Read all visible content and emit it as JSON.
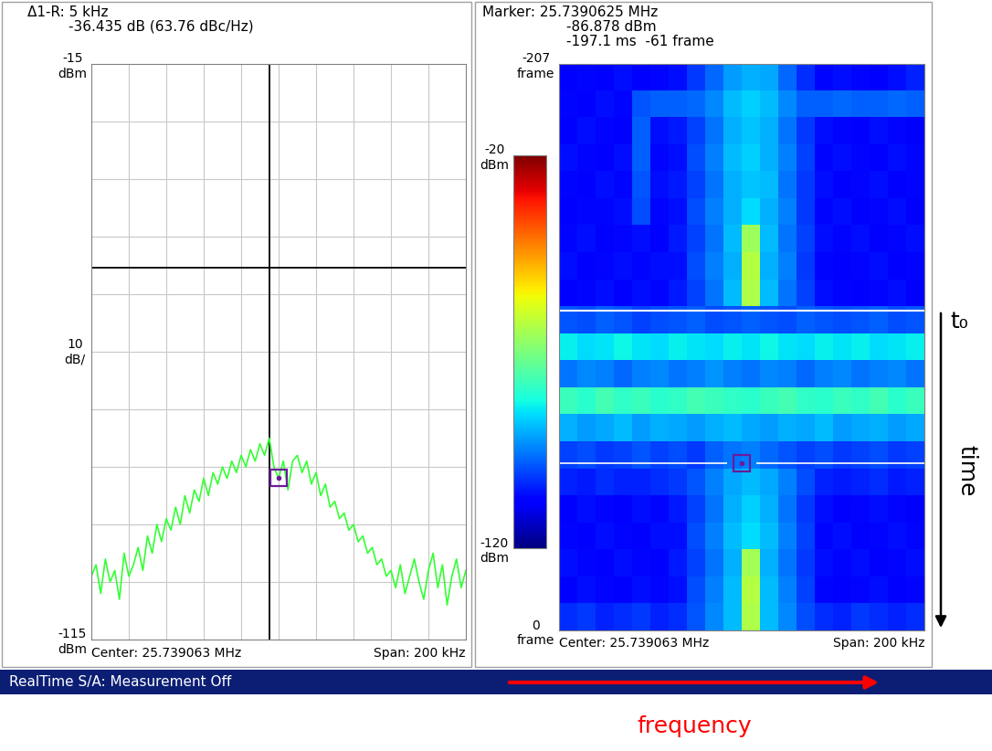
{
  "chart_data": [
    {
      "type": "line",
      "header": [
        "Δ1-R: 5 kHz",
        "-36.435 dB (63.76 dBc/Hz)"
      ],
      "x": [
        25.639063,
        25.641563,
        25.644063,
        25.646563,
        25.649063,
        25.651563,
        25.654063,
        25.656563,
        25.659063,
        25.661563,
        25.664063,
        25.666563,
        25.669063,
        25.671563,
        25.674063,
        25.676563,
        25.679063,
        25.681563,
        25.684063,
        25.686563,
        25.689063,
        25.691563,
        25.694063,
        25.696563,
        25.699063,
        25.701563,
        25.704063,
        25.706563,
        25.709063,
        25.711563,
        25.714063,
        25.716563,
        25.719063,
        25.721563,
        25.724063,
        25.726563,
        25.729063,
        25.731563,
        25.734063,
        25.736563,
        25.739063,
        25.741563,
        25.744063,
        25.746563,
        25.749063,
        25.751563,
        25.754063,
        25.756563,
        25.759063,
        25.761563,
        25.764063,
        25.766563,
        25.769063,
        25.771563,
        25.774063,
        25.776563,
        25.779063,
        25.781563,
        25.784063,
        25.786563,
        25.789063,
        25.791563,
        25.794063,
        25.796563,
        25.799063,
        25.801563,
        25.804063,
        25.806563,
        25.809063,
        25.811563,
        25.814063,
        25.816563,
        25.819063,
        25.821563,
        25.824063,
        25.826563,
        25.829063,
        25.831563,
        25.834063,
        25.836563,
        25.839063
      ],
      "values": [
        -104,
        -102,
        -107,
        -101,
        -105,
        -103,
        -108,
        -100,
        -104,
        -102,
        -99,
        -103,
        -97,
        -100,
        -95,
        -98,
        -94,
        -96,
        -92,
        -95,
        -90,
        -93,
        -89,
        -91,
        -87,
        -90,
        -86,
        -88,
        -85,
        -87,
        -84,
        -86,
        -83,
        -85,
        -82,
        -84,
        -81,
        -83,
        -80,
        -85,
        -87,
        -84,
        -89,
        -84,
        -83,
        -86,
        -84,
        -88,
        -86,
        -90,
        -88,
        -92,
        -91,
        -94,
        -93,
        -96,
        -95,
        -98,
        -97,
        -100,
        -99,
        -102,
        -101,
        -104,
        -103,
        -106,
        -102,
        -107,
        -104,
        -101,
        -105,
        -108,
        -103,
        -100,
        -106,
        -102,
        -109,
        -104,
        -101,
        -106,
        -103
      ],
      "color": "#33ff33",
      "xlim": [
        25.639063,
        25.839063
      ],
      "ylim": [
        -115,
        -15
      ],
      "yticks": [
        {
          "value": -15,
          "label": "-15\ndBm"
        },
        {
          "value": -115,
          "label": "-115\ndBm"
        }
      ],
      "tick_labels": "y",
      "grid": true,
      "scale_label": "10\ndB/",
      "reference": {
        "x": 25.7340625,
        "y": -50.443
      },
      "marker": {
        "x": 25.7390625,
        "y": -86.878
      },
      "center_label": "Center: 25.739063 MHz",
      "span_label": "Span: 200 kHz"
    },
    {
      "type": "heatmap",
      "header": [
        "Marker: 25.7390625 MHz",
        "-86.878 dBm",
        "-197.1 ms  -61 frame"
      ],
      "xlim": [
        25.639063,
        25.839063
      ],
      "ylim": [
        -207,
        0
      ],
      "yticks": [
        {
          "value": -207,
          "label": "-207\nframe"
        },
        {
          "value": 0,
          "label": "0\nframe"
        }
      ],
      "tick_labels": "y",
      "grid": false,
      "cells": [
        [
          -108,
          -107,
          -108,
          -106,
          -108,
          -107,
          -106,
          -102,
          -97,
          -92,
          -90,
          -91,
          -97,
          -103,
          -107,
          -106,
          -107,
          -108,
          -106,
          -104
        ],
        [
          -107,
          -108,
          -106,
          -107,
          -99,
          -98,
          -98,
          -97,
          -94,
          -89,
          -87,
          -89,
          -94,
          -98,
          -98,
          -97,
          -98,
          -98,
          -97,
          -98
        ],
        [
          -108,
          -106,
          -107,
          -108,
          -98,
          -106,
          -105,
          -101,
          -96,
          -90,
          -88,
          -90,
          -96,
          -102,
          -106,
          -107,
          -108,
          -106,
          -107,
          -108
        ],
        [
          -106,
          -107,
          -108,
          -106,
          -98,
          -107,
          -106,
          -100,
          -95,
          -89,
          -87,
          -90,
          -95,
          -101,
          -107,
          -106,
          -107,
          -108,
          -106,
          -107
        ],
        [
          -107,
          -108,
          -106,
          -107,
          -99,
          -106,
          -105,
          -101,
          -96,
          -90,
          -88,
          -89,
          -96,
          -102,
          -106,
          -108,
          -107,
          -106,
          -108,
          -107
        ],
        [
          -108,
          -107,
          -107,
          -106,
          -100,
          -107,
          -106,
          -100,
          -95,
          -90,
          -86,
          -90,
          -95,
          -102,
          -107,
          -106,
          -108,
          -107,
          -106,
          -108
        ],
        [
          -107,
          -106,
          -108,
          -107,
          -106,
          -108,
          -105,
          -101,
          -96,
          -89,
          -66,
          -89,
          -96,
          -101,
          -106,
          -107,
          -106,
          -108,
          -107,
          -106
        ],
        [
          -106,
          -108,
          -107,
          -106,
          -107,
          -106,
          -106,
          -100,
          -95,
          -90,
          -63,
          -90,
          -95,
          -102,
          -107,
          -108,
          -107,
          -106,
          -108,
          -107
        ],
        [
          -108,
          -107,
          -106,
          -108,
          -106,
          -107,
          -105,
          -101,
          -96,
          -89,
          -64,
          -89,
          -96,
          -101,
          -106,
          -107,
          -108,
          -107,
          -106,
          -108
        ],
        [
          -99,
          -100,
          -98,
          -99,
          -101,
          -100,
          -99,
          -98,
          -100,
          -99,
          -98,
          -99,
          -100,
          -98,
          -99,
          -100,
          -99,
          -98,
          -100,
          -99
        ],
        [
          -84,
          -86,
          -85,
          -83,
          -85,
          -86,
          -84,
          -85,
          -86,
          -84,
          -85,
          -83,
          -85,
          -86,
          -84,
          -85,
          -84,
          -86,
          -85,
          -84
        ],
        [
          -96,
          -94,
          -95,
          -97,
          -95,
          -94,
          -96,
          -95,
          -93,
          -95,
          -96,
          -94,
          -95,
          -97,
          -95,
          -94,
          -96,
          -95,
          -94,
          -96
        ],
        [
          -78,
          -80,
          -77,
          -79,
          -78,
          -80,
          -79,
          -77,
          -78,
          -79,
          -80,
          -78,
          -77,
          -79,
          -80,
          -78,
          -79,
          -77,
          -80,
          -78
        ],
        [
          -90,
          -92,
          -91,
          -89,
          -92,
          -90,
          -91,
          -92,
          -90,
          -89,
          -91,
          -92,
          -90,
          -91,
          -89,
          -92,
          -91,
          -90,
          -92,
          -91
        ],
        [
          -101,
          -100,
          -102,
          -101,
          -99,
          -101,
          -100,
          -102,
          -98,
          -96,
          -95,
          -97,
          -99,
          -101,
          -100,
          -102,
          -101,
          -100,
          -102,
          -101
        ],
        [
          -104,
          -105,
          -103,
          -104,
          -104,
          -103,
          -102,
          -99,
          -95,
          -91,
          -89,
          -91,
          -95,
          -100,
          -104,
          -105,
          -104,
          -103,
          -105,
          -104
        ],
        [
          -108,
          -106,
          -107,
          -108,
          -106,
          -107,
          -105,
          -101,
          -96,
          -90,
          -87,
          -90,
          -96,
          -102,
          -106,
          -108,
          -107,
          -106,
          -107,
          -108
        ],
        [
          -107,
          -108,
          -106,
          -107,
          -108,
          -106,
          -106,
          -100,
          -95,
          -89,
          -86,
          -89,
          -95,
          -101,
          -107,
          -106,
          -108,
          -107,
          -106,
          -107
        ],
        [
          -106,
          -107,
          -108,
          -106,
          -107,
          -108,
          -105,
          -101,
          -96,
          -90,
          -65,
          -90,
          -96,
          -102,
          -106,
          -107,
          -106,
          -108,
          -107,
          -106
        ],
        [
          -108,
          -106,
          -107,
          -108,
          -106,
          -107,
          -106,
          -100,
          -95,
          -89,
          -63,
          -89,
          -95,
          -101,
          -107,
          -108,
          -107,
          -106,
          -108,
          -107
        ],
        [
          -103,
          -102,
          -104,
          -103,
          -102,
          -104,
          -103,
          -99,
          -94,
          -89,
          -64,
          -89,
          -94,
          -100,
          -103,
          -104,
          -102,
          -103,
          -104,
          -103
        ]
      ],
      "colorbar": {
        "range": [
          -120,
          -20
        ],
        "ticks": [
          {
            "value": -20,
            "label": "-20\ndBm"
          },
          {
            "value": -120,
            "label": "-120\ndBm"
          }
        ]
      },
      "marker": {
        "x": 25.7390625,
        "frame": -61
      },
      "t0_frame": -117,
      "center_label": "Center: 25.739063 MHz",
      "span_label": "Span: 200 kHz",
      "annotations": {
        "t0": "t₀",
        "time": "time",
        "frequency": "frequency"
      }
    }
  ],
  "status_bar": "RealTime S/A: Measurement Off"
}
